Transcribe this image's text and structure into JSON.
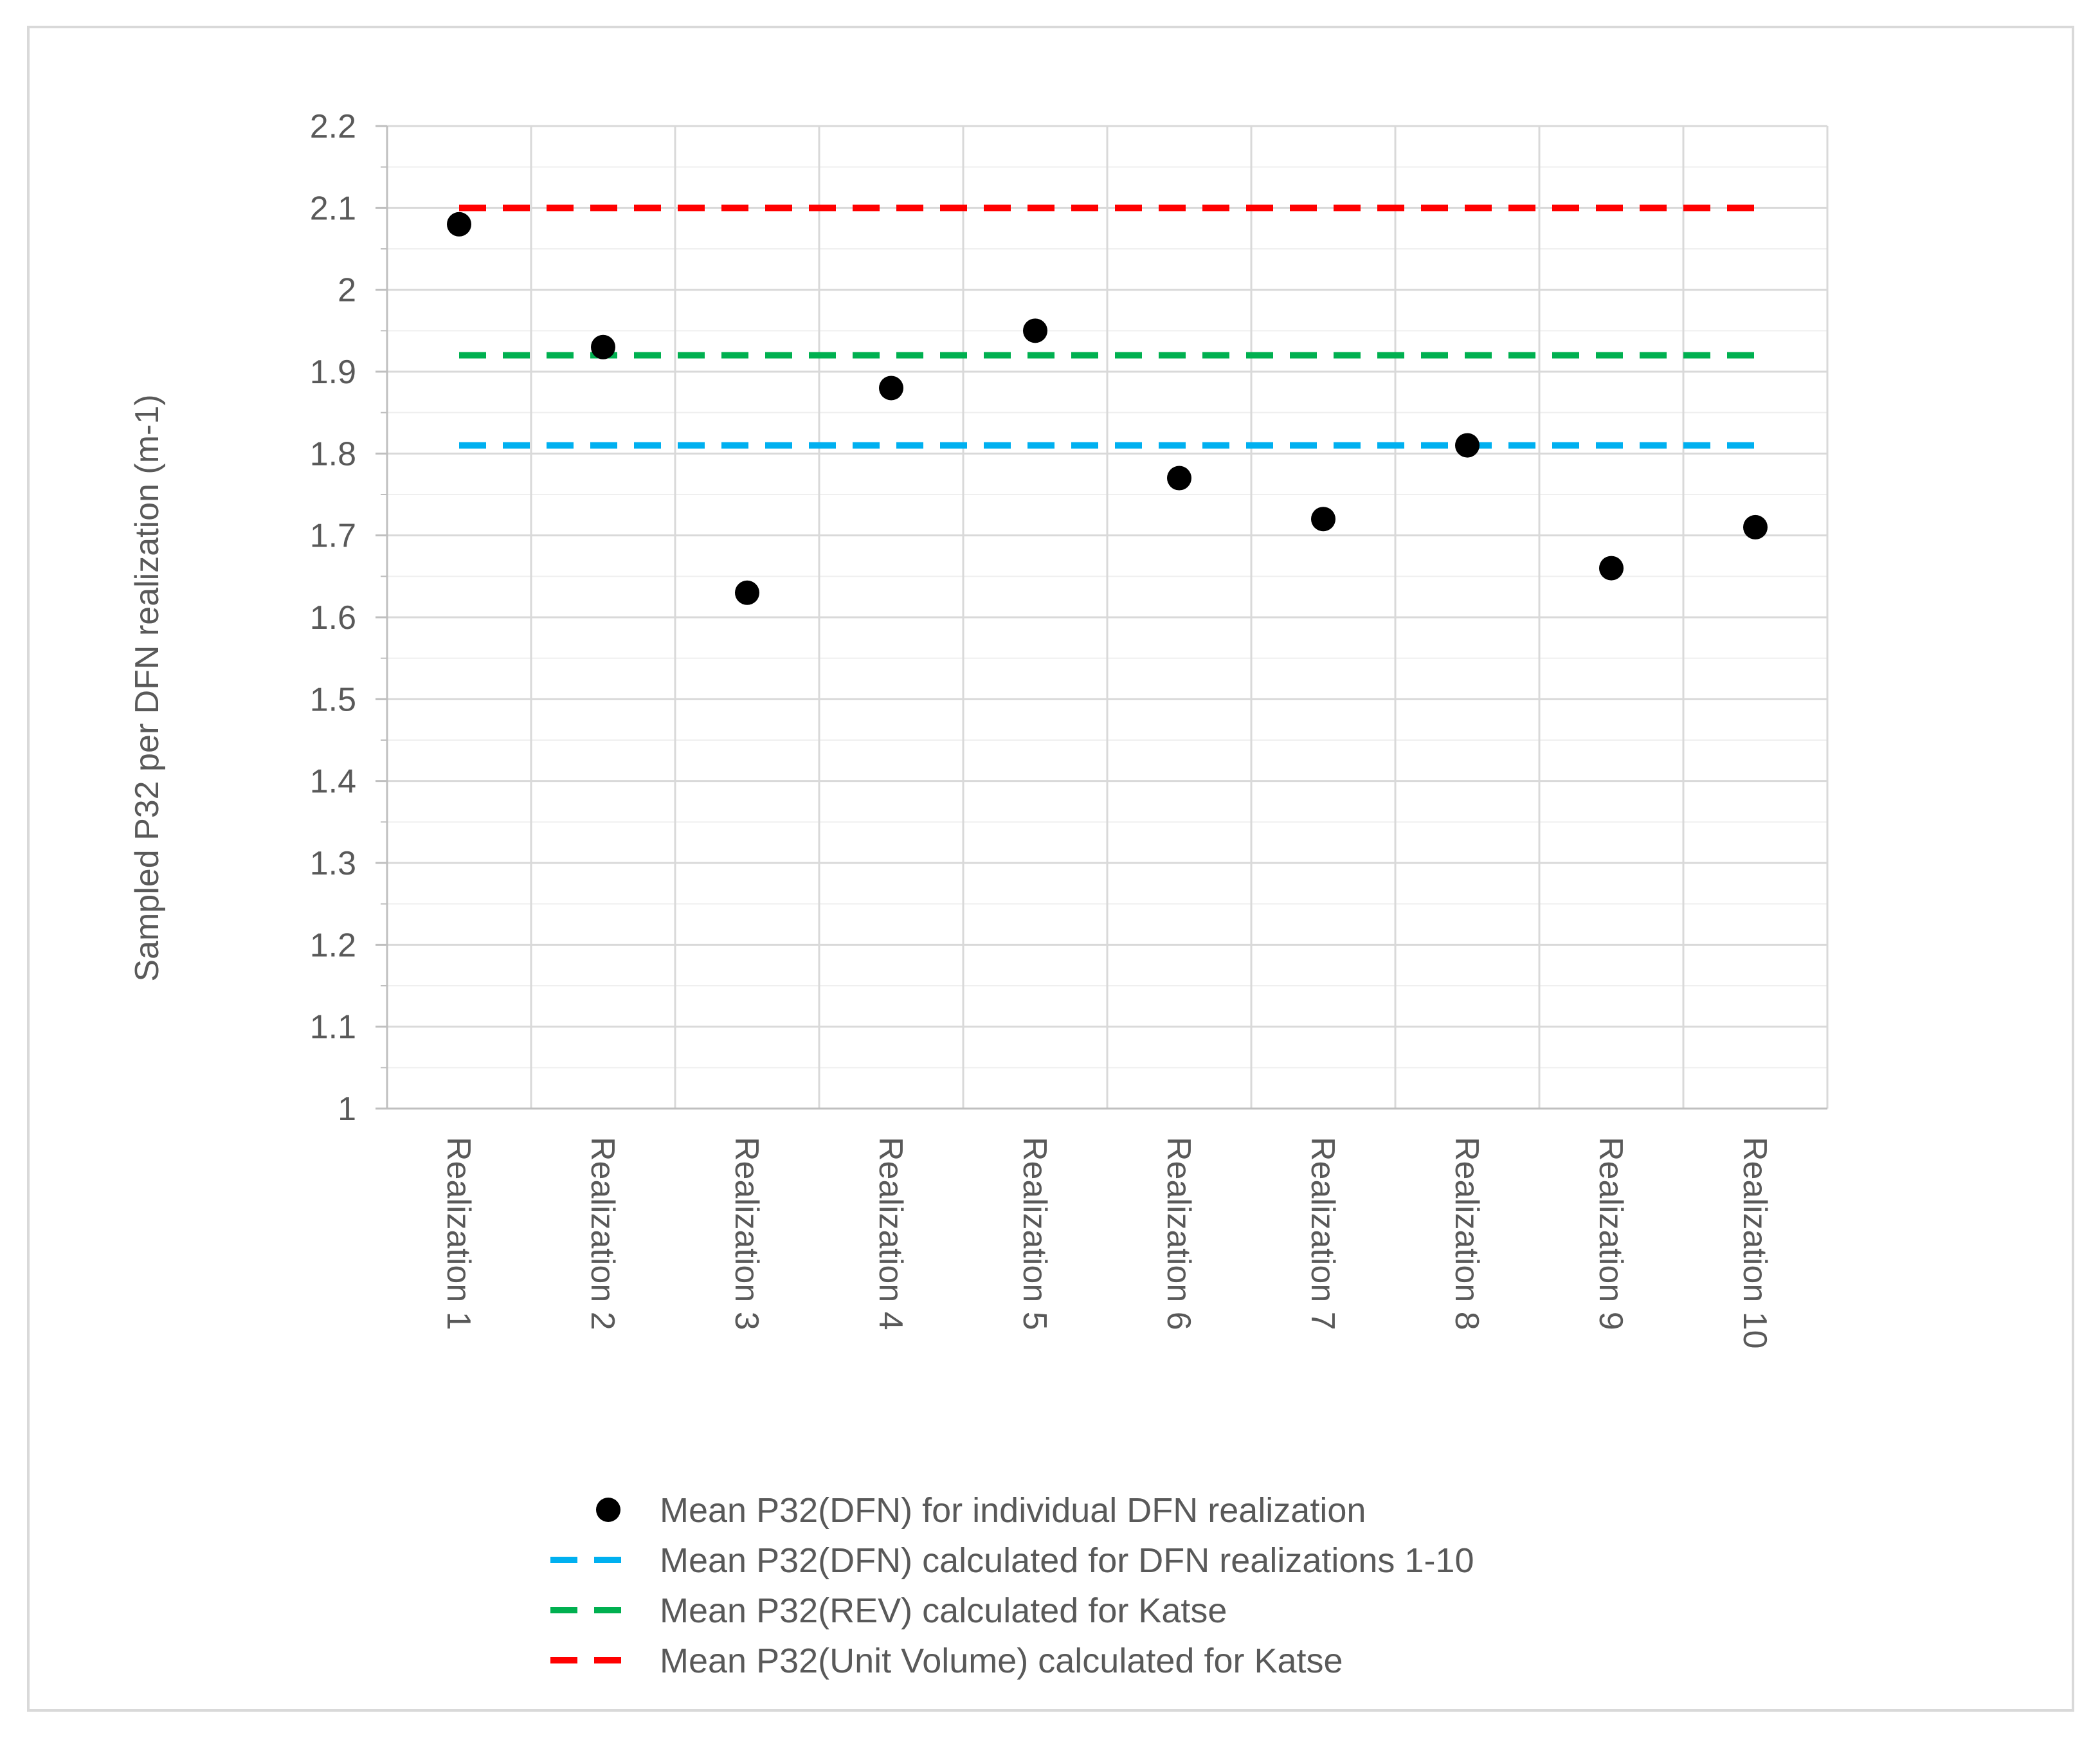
{
  "chart_data": {
    "type": "scatter",
    "ylabel": "Sampled P32 per DFN realization (m-1)",
    "xlabel": "",
    "ylim": [
      1,
      2.2
    ],
    "ytick_step": 0.1,
    "yticks": [
      "1",
      "1.1",
      "1.2",
      "1.3",
      "1.4",
      "1.5",
      "1.6",
      "1.7",
      "1.8",
      "1.9",
      "2",
      "2.1",
      "2.2"
    ],
    "categories": [
      "Realization 1",
      "Realization 2",
      "Realization 3",
      "Realization 4",
      "Realization 5",
      "Realization 6",
      "Realization 7",
      "Realization 8",
      "Realization 9",
      "Realization 10"
    ],
    "grid": true,
    "legend_position": "bottom",
    "series": [
      {
        "name": "Mean P32(DFN) for individual DFN realization",
        "kind": "points",
        "color": "#000000",
        "values": [
          2.08,
          1.93,
          1.63,
          1.88,
          1.95,
          1.77,
          1.72,
          1.81,
          1.66,
          1.71
        ]
      },
      {
        "name": "Mean P32(DFN) calculated for DFN realizations 1-10",
        "kind": "dashed-line",
        "color": "#00b0f0",
        "value": 1.81
      },
      {
        "name": "Mean P32(REV) calculated for Katse",
        "kind": "dashed-line",
        "color": "#00b050",
        "value": 1.92
      },
      {
        "name": "Mean P32(Unit Volume) calculated for Katse",
        "kind": "dashed-line",
        "color": "#ff0000",
        "value": 2.1
      }
    ]
  }
}
